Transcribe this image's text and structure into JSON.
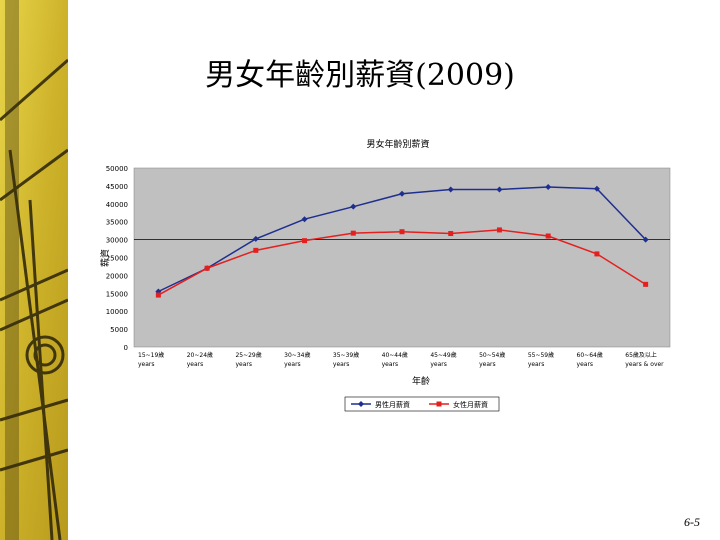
{
  "slide": {
    "title": "男女年齡別薪資(2009)",
    "page_number": "6-5"
  },
  "colors": {
    "male": "#1f2f8f",
    "female": "#e4201f",
    "plot_bg": "#c0c0c0",
    "strip": "#d8c03a"
  },
  "chart_data": {
    "type": "line",
    "title": "男女年齡別薪資",
    "xlabel": "年齡",
    "ylabel": "薪資",
    "categories": [
      "15~19歲 years",
      "20~24歲 years",
      "25~29歲 years",
      "30~34歲 years",
      "35~39歲 years",
      "40~44歲 years",
      "45~49歲 years",
      "50~54歲 years",
      "55~59歲 years",
      "60~64歲 years",
      "65歲及以上 years & over"
    ],
    "category_lines": [
      [
        "15~19歲",
        "years"
      ],
      [
        "20~24歲",
        "years"
      ],
      [
        "25~29歲",
        "years"
      ],
      [
        "30~34歲",
        "years"
      ],
      [
        "35~39歲",
        "years"
      ],
      [
        "40~44歲",
        "years"
      ],
      [
        "45~49歲",
        "years"
      ],
      [
        "50~54歲",
        "years"
      ],
      [
        "55~59歲",
        "years"
      ],
      [
        "60~64歲",
        "years"
      ],
      [
        "65歲及以上",
        "years & over"
      ]
    ],
    "series": [
      {
        "name": "男性月薪資",
        "values": [
          15500,
          22000,
          30200,
          35700,
          39200,
          42800,
          44000,
          44000,
          44700,
          44200,
          30000
        ]
      },
      {
        "name": "女性月薪資",
        "values": [
          14500,
          22000,
          27000,
          29700,
          31800,
          32200,
          31700,
          32700,
          31000,
          26000,
          17500
        ]
      }
    ],
    "ylim": [
      0,
      50000
    ],
    "yticks": [
      "0",
      "5000",
      "10000",
      "15000",
      "20000",
      "25000",
      "30000",
      "35000",
      "40000",
      "45000",
      "50000"
    ],
    "grid": true,
    "legend": "bottom"
  }
}
